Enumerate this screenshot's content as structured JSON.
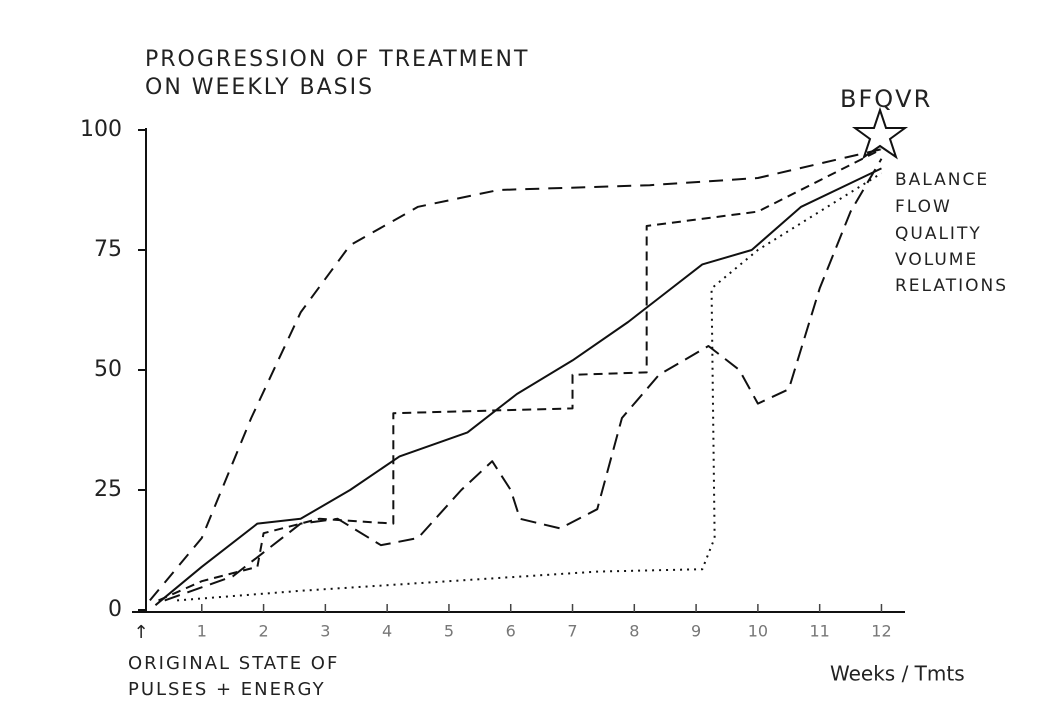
{
  "chart_data": {
    "type": "line",
    "title_lines": [
      "PROGRESSION OF TREATMENT",
      "ON WEEKLY BASIS"
    ],
    "xlabel": "Weeks / Tmts",
    "xlim": [
      0,
      12.3
    ],
    "ylim": [
      0,
      100
    ],
    "xticks": [
      1,
      2,
      3,
      4,
      5,
      6,
      7,
      8,
      9,
      10,
      11,
      12
    ],
    "yticks": [
      0,
      25,
      50,
      75,
      100
    ],
    "origin_marker": "↑",
    "origin_note": [
      "ORIGINAL STATE OF",
      "PULSES + ENERGY"
    ],
    "goal": "BFQVR",
    "goal_items": [
      "BALANCE",
      "FLOW",
      "QUALITY",
      "VOLUME",
      "RELATIONS"
    ],
    "series": [
      {
        "color": "#111",
        "dash": "14 9",
        "x": [
          0.16,
          1,
          1.8,
          2.6,
          3.4,
          4.5,
          5.8,
          8.25,
          10,
          12
        ],
        "values": [
          2,
          15,
          40,
          62,
          76,
          84,
          87.5,
          88.5,
          90,
          96
        ]
      },
      {
        "color": "#111",
        "dash": "none",
        "x": [
          0.25,
          1,
          1.9,
          2.6,
          3.4,
          4.2,
          5.3,
          6.1,
          7,
          7.9,
          8.4,
          9.1,
          9.9,
          10.7,
          12
        ],
        "values": [
          1,
          9,
          18,
          19,
          25,
          32,
          37,
          45,
          52,
          60,
          65,
          72,
          75,
          84,
          92
        ]
      },
      {
        "color": "#111",
        "dash": "9 6",
        "x": [
          0.3,
          1,
          1.9,
          2,
          2.9,
          4.1,
          4.1,
          7,
          7,
          8.2,
          8.2,
          10,
          12
        ],
        "values": [
          2,
          6,
          9,
          16,
          19,
          18,
          41,
          42,
          49,
          49.5,
          80,
          83,
          96
        ]
      },
      {
        "color": "#111",
        "dash": "16 8",
        "x": [
          0.4,
          1.5,
          2.6,
          3.2,
          3.9,
          4.5,
          5.2,
          5.7,
          6,
          6.15,
          6.8,
          7.4,
          7.8,
          8.4,
          9.2,
          9.7,
          10,
          10.5,
          11,
          11.5,
          12
        ],
        "values": [
          2,
          7,
          18,
          19,
          13.5,
          15,
          25,
          31,
          25,
          19,
          17,
          21,
          40,
          49,
          55,
          50,
          43,
          46,
          67,
          83,
          94
        ]
      },
      {
        "color": "#111",
        "dash": "2 5",
        "x": [
          0.6,
          2.6,
          5,
          7.4,
          9.1,
          9.3,
          9.25,
          10,
          12
        ],
        "values": [
          2,
          4,
          6,
          8,
          8.5,
          15,
          67,
          75,
          91
        ]
      }
    ]
  }
}
